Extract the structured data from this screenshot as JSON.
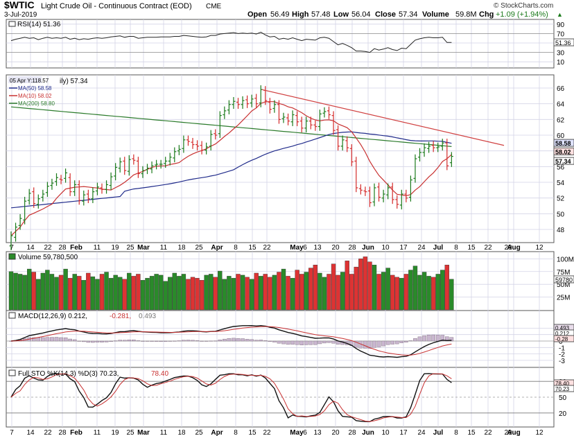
{
  "header": {
    "symbol": "$WTIC",
    "name": "Light Crude Oil - Continuous Contract (EOD)",
    "exchange": "CME",
    "date": "3-Jul-2019",
    "open_label": "Open",
    "open": "56.49",
    "high_label": "High",
    "high": "57.48",
    "low_label": "Low",
    "low": "56.04",
    "close_label": "Close",
    "close": "57.34",
    "volume_label": "Volume",
    "volume": "59.8M",
    "chg_label": "Chg",
    "chg": "+1.09 (+1.94%)",
    "credit": "© StockCharts.com",
    "triangle": "▲"
  },
  "colors": {
    "up": "#1a7a1a",
    "down": "#d42a2a",
    "ma50": "#1f2a8a",
    "ma10": "#c83030",
    "ma200": "#2a7a2a",
    "trend": "#d04040",
    "grid": "#d3d3e6",
    "frame": "#555555"
  },
  "rsi_panel": {
    "label": "RSI(14) 51.36",
    "ticks": [
      "90",
      "70",
      "50",
      "30",
      "10"
    ],
    "current": "51.36"
  },
  "price_panel": {
    "cursor_label": "05 Apr Y:118.57",
    "title_suffix": "ily) 57.34",
    "legend": [
      {
        "label": "MA(50) 58.58"
      },
      {
        "label": "MA(10) 58.02"
      },
      {
        "label": "MA(200) 58.80"
      }
    ],
    "ticks": [
      "66",
      "64",
      "62",
      "60",
      "58",
      "56",
      "54",
      "52",
      "50",
      "48"
    ],
    "badges": [
      "58.58",
      "58.02",
      "57.34"
    ]
  },
  "volume_panel": {
    "label": "Volume 59,780,500",
    "ticks": [
      "100M",
      "75M",
      "50M",
      "25M"
    ],
    "current": "59780"
  },
  "macd_panel": {
    "label_main": "MACD(12,26,9) 0.212,",
    "label_signal": "-0.281,",
    "label_hist": "0.493",
    "ticks": [
      "2",
      "1",
      "0",
      "-1",
      "-2",
      "-3"
    ],
    "badges": [
      "0.493",
      "0.212",
      "-0.28"
    ]
  },
  "sto_panel": {
    "label_main": "Full STO %K(14,3) %D(3) 70.23,",
    "label_signal": "78.40",
    "ticks": [
      "80",
      "50",
      "20"
    ],
    "badges": [
      "78.40",
      "70.23"
    ]
  },
  "x_axis": {
    "labels": [
      "7",
      "14",
      "22",
      "28",
      "Feb",
      "11",
      "19",
      "25",
      "Mar",
      "11",
      "18",
      "25",
      "Apr",
      "8",
      "15",
      "22",
      "May",
      "6",
      "13",
      "20",
      "28",
      "Jun",
      "10",
      "17",
      "24",
      "Jul",
      "8",
      "15",
      "22",
      "29",
      "Aug",
      "12"
    ]
  },
  "chart_data": {
    "type": "line",
    "title": "$WTIC Light Crude Oil - Continuous Contract (EOD) CME",
    "date_range": [
      "2019-01-07",
      "2019-07-03"
    ],
    "ohlc_last": {
      "open": 56.49,
      "high": 57.48,
      "low": 56.04,
      "close": 57.34,
      "volume": 59780500,
      "change": 1.09,
      "change_pct": 1.94
    },
    "x_ticks": [
      "7",
      "14",
      "22",
      "28",
      "Feb",
      "11",
      "19",
      "25",
      "Mar",
      "11",
      "18",
      "25",
      "Apr",
      "8",
      "15",
      "22",
      "May",
      "6",
      "13",
      "20",
      "28",
      "Jun",
      "10",
      "17",
      "24",
      "Jul",
      "8",
      "15",
      "22",
      "29",
      "Aug",
      "12"
    ],
    "price_ylim": [
      46.5,
      67.5
    ],
    "close": [
      47.2,
      48.3,
      49.4,
      51.6,
      52.6,
      51.3,
      51.9,
      52.5,
      53.5,
      53.9,
      54.6,
      54.3,
      55.2,
      52.8,
      53.7,
      51.7,
      52.4,
      51.9,
      52.8,
      53.4,
      53.1,
      53.7,
      54.7,
      55.9,
      56.6,
      55.5,
      56.9,
      56.8,
      55.1,
      55.5,
      55.8,
      56.1,
      56.3,
      56.3,
      56.7,
      57.2,
      57.9,
      58.2,
      59.4,
      59.2,
      58.8,
      58.6,
      58.1,
      58.5,
      60.1,
      60.0,
      62.5,
      63.1,
      63.9,
      64.3,
      63.9,
      64.4,
      64.0,
      64.6,
      64.0,
      65.8,
      64.4,
      63.3,
      63.9,
      62.0,
      62.3,
      61.8,
      62.6,
      61.7,
      60.9,
      61.8,
      61.3,
      61.1,
      62.7,
      63.0,
      62.6,
      60.6,
      58.6,
      59.4,
      58.4,
      56.6,
      53.3,
      53.0,
      52.8,
      51.4,
      53.3,
      52.1,
      52.5,
      53.3,
      51.8,
      51.2,
      52.5,
      52.0,
      54.3,
      57.0,
      57.8,
      58.4,
      58.6,
      58.4,
      58.5,
      59.0,
      56.1,
      57.3
    ],
    "open": [
      45.9,
      47.0,
      48.5,
      49.2,
      51.7,
      52.8,
      51.2,
      52.1,
      52.7,
      53.6,
      54.1,
      54.4,
      54.5,
      54.6,
      52.8,
      53.7,
      51.6,
      52.5,
      51.9,
      52.9,
      53.3,
      53.1,
      53.6,
      54.8,
      55.8,
      56.7,
      55.4,
      57.0,
      56.7,
      55.1,
      55.6,
      55.7,
      56.2,
      56.3,
      56.4,
      56.7,
      57.1,
      58.0,
      58.3,
      59.4,
      59.1,
      58.8,
      58.7,
      58.1,
      58.6,
      60.2,
      60.2,
      62.6,
      63.2,
      63.9,
      64.2,
      63.9,
      64.5,
      64.1,
      64.7,
      64.1,
      65.7,
      64.2,
      63.4,
      63.9,
      62.1,
      62.2,
      61.7,
      62.5,
      61.8,
      60.9,
      61.8,
      61.3,
      61.1,
      62.8,
      63.1,
      62.5,
      60.7,
      58.6,
      59.3,
      58.3,
      56.7,
      53.2,
      52.9,
      52.9,
      51.5,
      53.4,
      52.0,
      52.4,
      53.4,
      51.8,
      51.1,
      52.5,
      52.1,
      54.5,
      57.2,
      57.8,
      58.3,
      58.7,
      58.4,
      58.6,
      59.0,
      56.5
    ],
    "volume_millions": [
      75,
      72,
      70,
      68,
      80,
      74,
      60,
      72,
      78,
      70,
      64,
      68,
      80,
      62,
      70,
      66,
      58,
      72,
      65,
      60,
      70,
      74,
      62,
      68,
      64,
      60,
      72,
      66,
      70,
      58,
      62,
      66,
      70,
      68,
      56,
      64,
      72,
      66,
      70,
      60,
      64,
      62,
      58,
      68,
      70,
      64,
      76,
      60,
      66,
      62,
      70,
      68,
      64,
      60,
      72,
      66,
      70,
      64,
      68,
      74,
      80,
      66,
      62,
      78,
      70,
      74,
      82,
      88,
      72,
      64,
      70,
      90,
      68,
      74,
      96,
      70,
      84,
      100,
      104,
      94,
      88,
      70,
      74,
      82,
      68,
      64,
      62,
      70,
      78,
      86,
      68,
      74,
      66,
      64,
      70,
      78,
      88,
      60
    ],
    "ma10_last": 58.02,
    "ma50_last": 58.58,
    "ma200_last": 58.8,
    "rsi_last": 51.36,
    "macd": {
      "macd": 0.212,
      "signal": -0.281,
      "histogram": 0.493
    },
    "stochastic": {
      "k": 70.23,
      "d": 78.4
    }
  }
}
